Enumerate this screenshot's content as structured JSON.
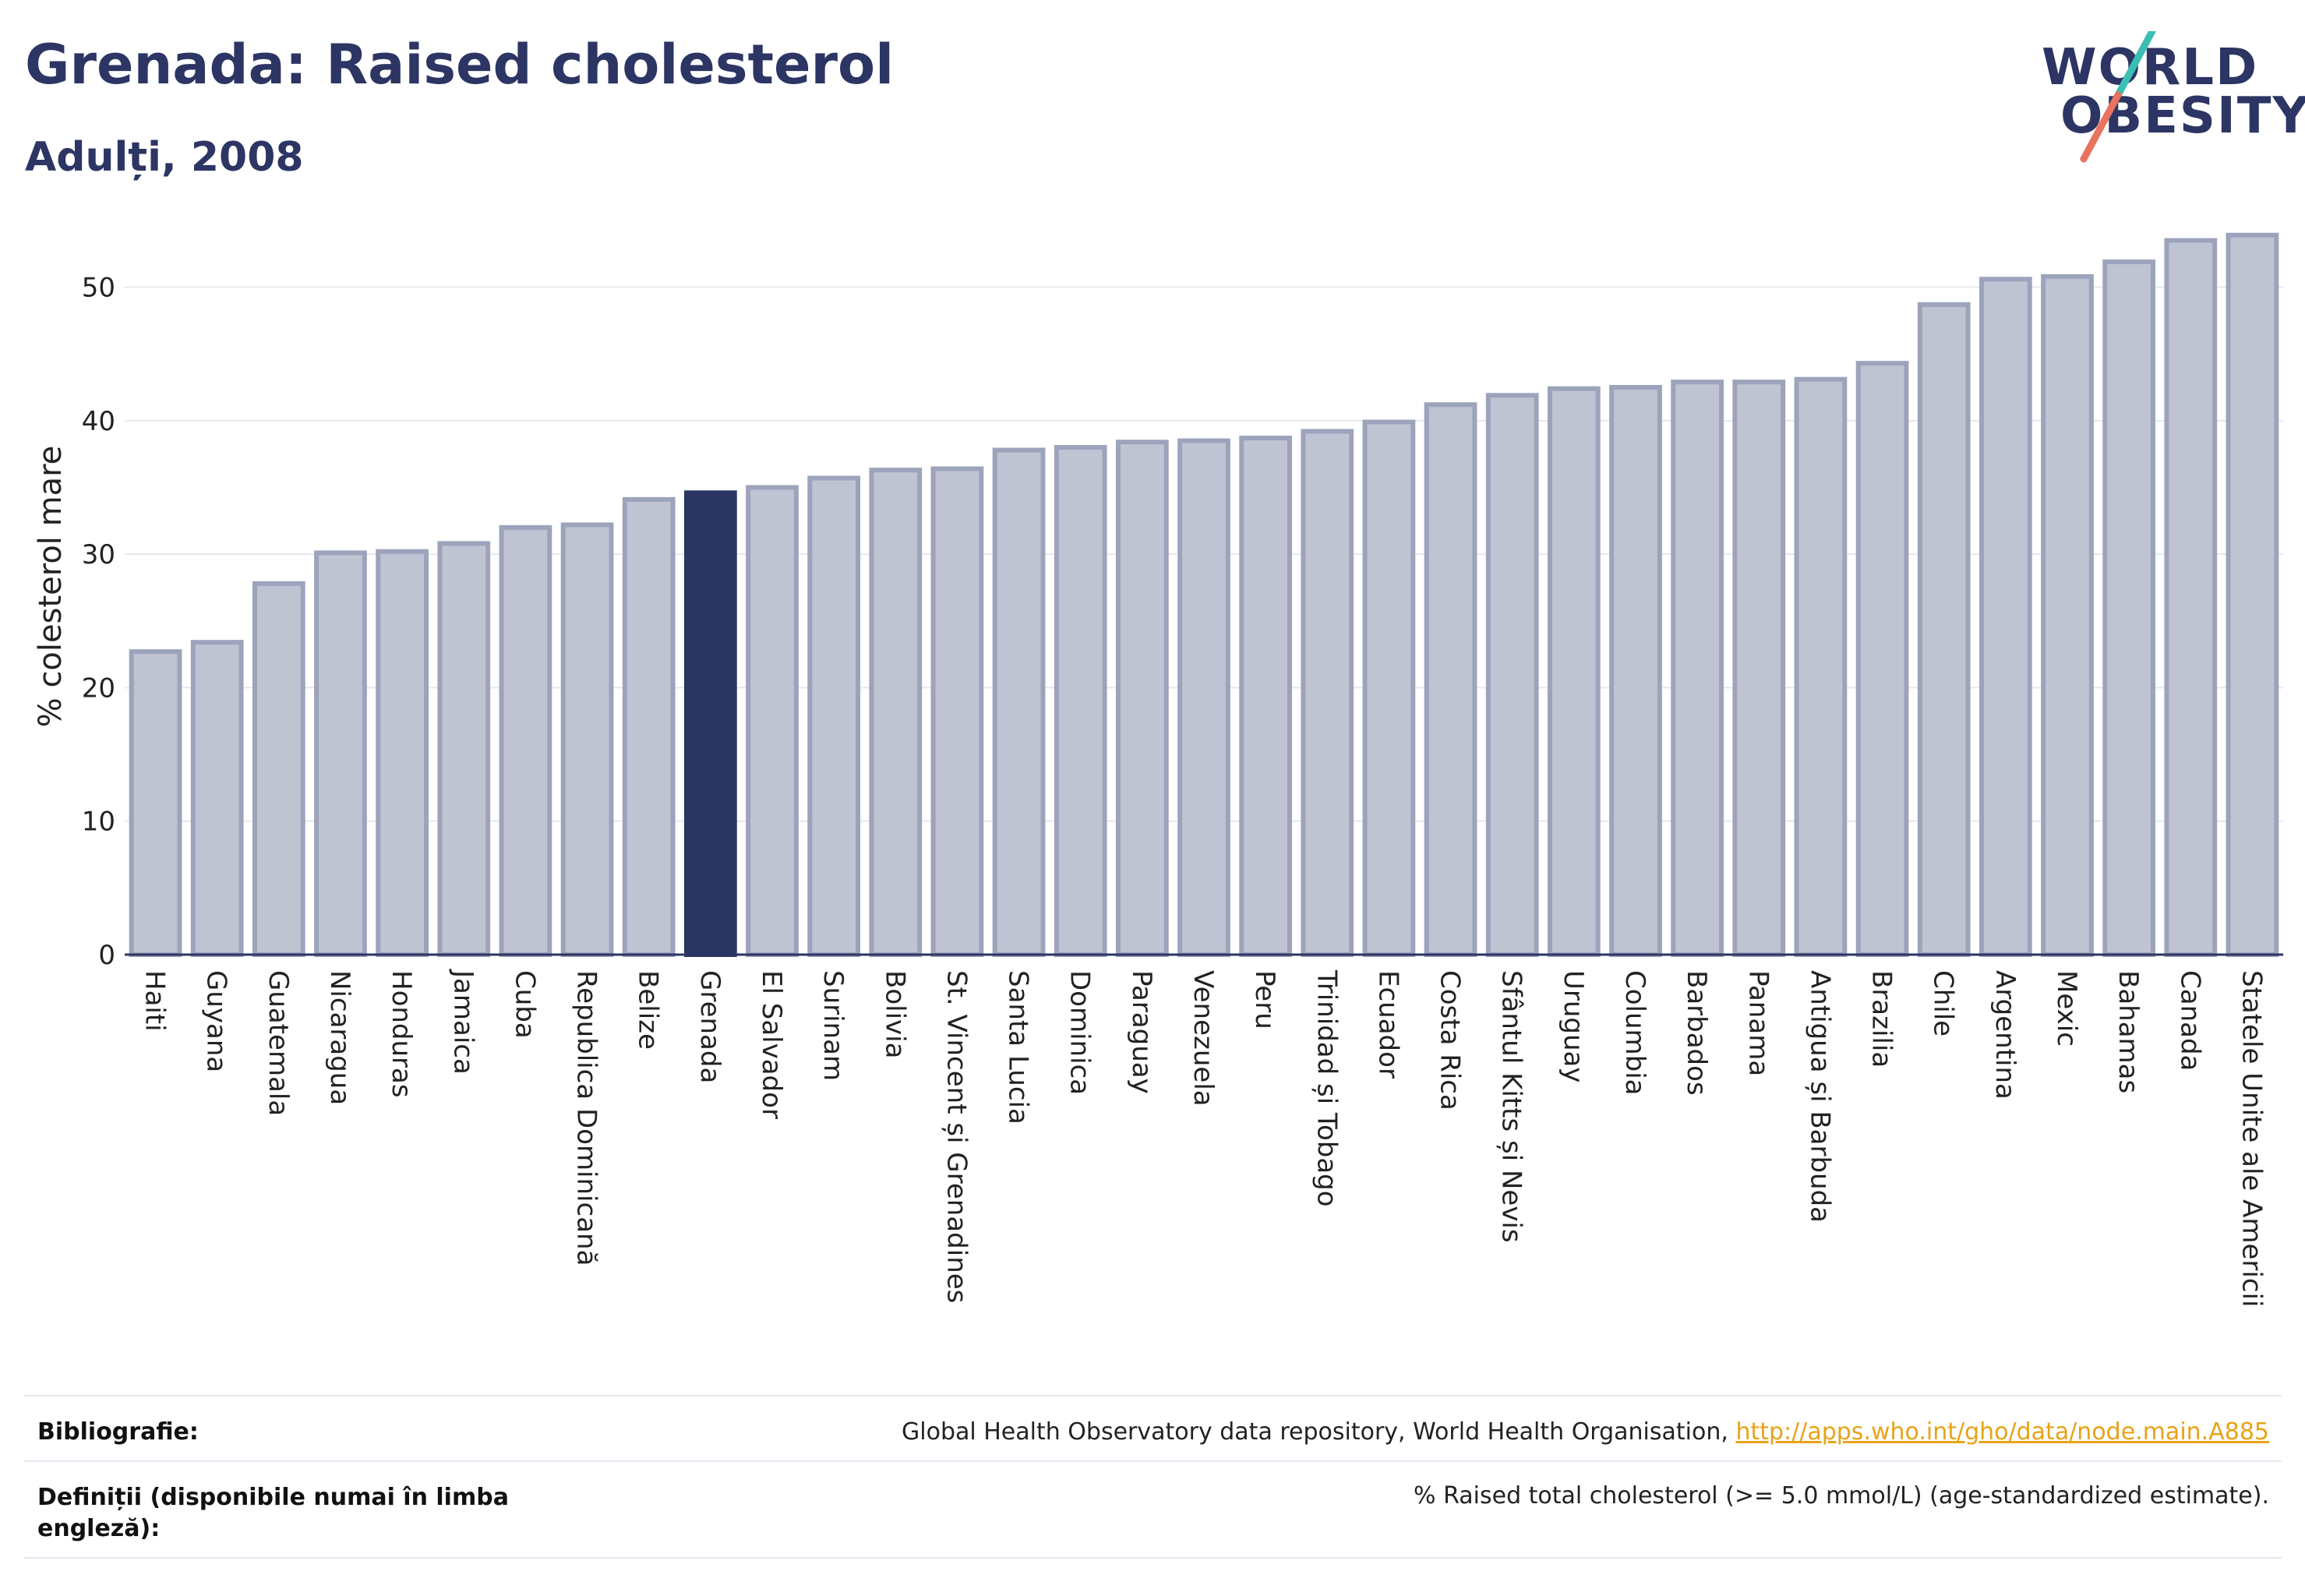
{
  "header": {
    "title": "Grenada: Raised cholesterol",
    "subtitle": "Adulți, 2008"
  },
  "logo": {
    "line1": "WORLD",
    "line2": "OBESITY",
    "accent_teal": "#3bbfb5",
    "accent_coral": "#e8735f"
  },
  "chart_data": {
    "type": "bar",
    "ylabel": "% colesterol mare",
    "ylim": [
      0,
      54
    ],
    "yticks": [
      0,
      10,
      20,
      30,
      40,
      50
    ],
    "grid": true,
    "highlight": "Grenada",
    "colors": {
      "bar": "#c0c4d2",
      "bar_border": "#9ca3bb",
      "highlight": "#2a3562"
    },
    "categories": [
      "Haiti",
      "Guyana",
      "Guatemala",
      "Nicaragua",
      "Honduras",
      "Jamaica",
      "Cuba",
      "Republica Dominicană",
      "Belize",
      "Grenada",
      "El Salvador",
      "Surinam",
      "Bolivia",
      "St. Vincent și Grenadines",
      "Santa Lucia",
      "Dominica",
      "Paraguay",
      "Venezuela",
      "Peru",
      "Trinidad și Tobago",
      "Ecuador",
      "Costa Rica",
      "Sfântul Kitts și Nevis",
      "Uruguay",
      "Columbia",
      "Barbados",
      "Panama",
      "Antigua și Barbuda",
      "Brazilia",
      "Chile",
      "Argentina",
      "Mexic",
      "Bahamas",
      "Canada",
      "Statele Unite ale Americii"
    ],
    "values": [
      22.7,
      23.4,
      27.8,
      30.1,
      30.2,
      30.8,
      32.0,
      32.2,
      34.1,
      34.6,
      35.0,
      35.7,
      36.3,
      36.4,
      37.8,
      38.0,
      38.4,
      38.5,
      38.7,
      39.2,
      39.9,
      41.2,
      41.9,
      42.4,
      42.5,
      42.9,
      42.9,
      43.1,
      44.3,
      48.7,
      50.6,
      50.8,
      51.9,
      53.5,
      53.9
    ]
  },
  "footer": {
    "bibliography_label": "Bibliografie:",
    "bibliography_text": "Global Health Observatory data repository, World Health Organisation, ",
    "bibliography_link": "http://apps.who.int/gho/data/node.main.A885",
    "definitions_label_1": "Definiții (disponibile numai în limba",
    "definitions_label_2": "engleză):",
    "definitions_text": "% Raised total cholesterol (>= 5.0 mmol/L) (age-standardized estimate)."
  }
}
